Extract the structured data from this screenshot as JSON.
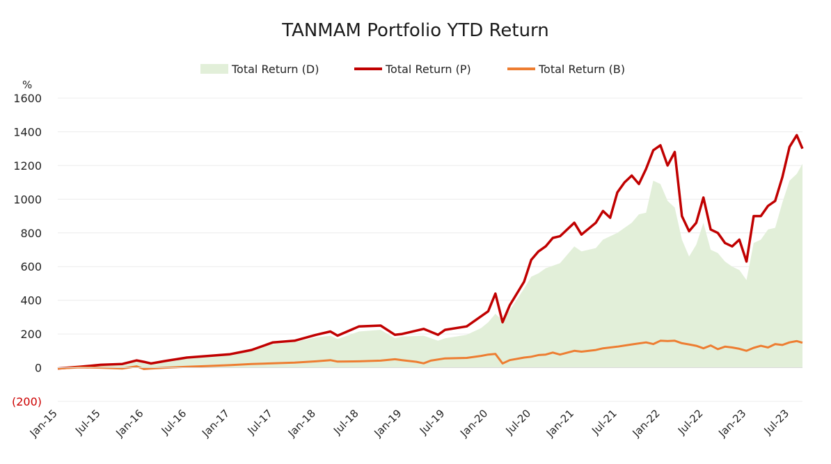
{
  "chart_data": {
    "type": "line",
    "title": "TANMAM Portfolio YTD Return",
    "ylabel": "%",
    "xlabel": "",
    "ylim": [
      -200,
      1600
    ],
    "yticks": [
      -200,
      0,
      200,
      400,
      600,
      800,
      1000,
      1200,
      1400,
      1600
    ],
    "ytick_labels": [
      "(200)",
      "0",
      "200",
      "400",
      "600",
      "800",
      "1000",
      "1200",
      "1400",
      "1600"
    ],
    "negative_label_color": "#cc0000",
    "grid": true,
    "legend_position": "top-center",
    "x_range": [
      0,
      103.8
    ],
    "x_ticks": [
      {
        "t": 0,
        "label": "Jan-15"
      },
      {
        "t": 6,
        "label": "Jul-15"
      },
      {
        "t": 12,
        "label": "Jan-16"
      },
      {
        "t": 18,
        "label": "Jul-16"
      },
      {
        "t": 24,
        "label": "Jan-17"
      },
      {
        "t": 30,
        "label": "Jul-17"
      },
      {
        "t": 36,
        "label": "Jan-18"
      },
      {
        "t": 42,
        "label": "Jul-18"
      },
      {
        "t": 48,
        "label": "Jan-19"
      },
      {
        "t": 54,
        "label": "Jul-19"
      },
      {
        "t": 60,
        "label": "Jan-20"
      },
      {
        "t": 66,
        "label": "Jul-20"
      },
      {
        "t": 72,
        "label": "Jan-21"
      },
      {
        "t": 78,
        "label": "Jul-21"
      },
      {
        "t": 84,
        "label": "Jan-22"
      },
      {
        "t": 90,
        "label": "Jul-22"
      },
      {
        "t": 96,
        "label": "Jan-23"
      },
      {
        "t": 102,
        "label": "Jul-23"
      }
    ],
    "series": [
      {
        "name": "Total Return (D)",
        "kind": "area",
        "color": "#e2efd9",
        "points": [
          [
            0,
            -5
          ],
          [
            3,
            5
          ],
          [
            6,
            15
          ],
          [
            9,
            20
          ],
          [
            11,
            40
          ],
          [
            12,
            30
          ],
          [
            13,
            22
          ],
          [
            15,
            38
          ],
          [
            18,
            55
          ],
          [
            21,
            65
          ],
          [
            24,
            75
          ],
          [
            27,
            100
          ],
          [
            30,
            140
          ],
          [
            33,
            152
          ],
          [
            36,
            180
          ],
          [
            38,
            190
          ],
          [
            39,
            170
          ],
          [
            42,
            215
          ],
          [
            45,
            225
          ],
          [
            47,
            175
          ],
          [
            48,
            185
          ],
          [
            51,
            190
          ],
          [
            53,
            160
          ],
          [
            54,
            175
          ],
          [
            57,
            195
          ],
          [
            59,
            235
          ],
          [
            60,
            270
          ],
          [
            61,
            320
          ],
          [
            62,
            280
          ],
          [
            63,
            340
          ],
          [
            65,
            470
          ],
          [
            66,
            540
          ],
          [
            67,
            560
          ],
          [
            68,
            590
          ],
          [
            70,
            620
          ],
          [
            72,
            720
          ],
          [
            73,
            690
          ],
          [
            75,
            710
          ],
          [
            76,
            760
          ],
          [
            78,
            800
          ],
          [
            80,
            860
          ],
          [
            81,
            910
          ],
          [
            82,
            920
          ],
          [
            83,
            1110
          ],
          [
            84,
            1090
          ],
          [
            85,
            990
          ],
          [
            86,
            950
          ],
          [
            87,
            760
          ],
          [
            88,
            660
          ],
          [
            89,
            730
          ],
          [
            90,
            860
          ],
          [
            91,
            700
          ],
          [
            92,
            680
          ],
          [
            93,
            630
          ],
          [
            94,
            600
          ],
          [
            95,
            580
          ],
          [
            96,
            520
          ],
          [
            97,
            740
          ],
          [
            98,
            760
          ],
          [
            99,
            820
          ],
          [
            100,
            830
          ],
          [
            101,
            980
          ],
          [
            102,
            1110
          ],
          [
            103,
            1150
          ],
          [
            103.8,
            1210
          ]
        ]
      },
      {
        "name": "Total Return (P)",
        "kind": "line",
        "color": "#c00000",
        "points": [
          [
            0,
            -5
          ],
          [
            3,
            5
          ],
          [
            6,
            17
          ],
          [
            9,
            22
          ],
          [
            11,
            43
          ],
          [
            12,
            35
          ],
          [
            13,
            25
          ],
          [
            15,
            40
          ],
          [
            18,
            60
          ],
          [
            21,
            70
          ],
          [
            24,
            80
          ],
          [
            27,
            105
          ],
          [
            30,
            150
          ],
          [
            33,
            160
          ],
          [
            36,
            195
          ],
          [
            38,
            215
          ],
          [
            39,
            190
          ],
          [
            42,
            245
          ],
          [
            45,
            250
          ],
          [
            47,
            195
          ],
          [
            48,
            200
          ],
          [
            51,
            230
          ],
          [
            53,
            195
          ],
          [
            54,
            225
          ],
          [
            57,
            245
          ],
          [
            59,
            305
          ],
          [
            60,
            335
          ],
          [
            61,
            440
          ],
          [
            62,
            270
          ],
          [
            63,
            370
          ],
          [
            65,
            510
          ],
          [
            66,
            640
          ],
          [
            67,
            690
          ],
          [
            68,
            720
          ],
          [
            69,
            770
          ],
          [
            70,
            780
          ],
          [
            72,
            860
          ],
          [
            73,
            790
          ],
          [
            75,
            860
          ],
          [
            76,
            930
          ],
          [
            77,
            890
          ],
          [
            78,
            1040
          ],
          [
            79,
            1100
          ],
          [
            80,
            1140
          ],
          [
            81,
            1090
          ],
          [
            82,
            1180
          ],
          [
            83,
            1290
          ],
          [
            84,
            1320
          ],
          [
            85,
            1200
          ],
          [
            86,
            1280
          ],
          [
            87,
            900
          ],
          [
            88,
            810
          ],
          [
            89,
            860
          ],
          [
            90,
            1010
          ],
          [
            91,
            820
          ],
          [
            92,
            800
          ],
          [
            93,
            740
          ],
          [
            94,
            720
          ],
          [
            95,
            760
          ],
          [
            96,
            630
          ],
          [
            97,
            900
          ],
          [
            98,
            900
          ],
          [
            99,
            960
          ],
          [
            100,
            990
          ],
          [
            101,
            1130
          ],
          [
            102,
            1310
          ],
          [
            103,
            1380
          ],
          [
            103.8,
            1300
          ]
        ]
      },
      {
        "name": "Total Return (B)",
        "kind": "line",
        "color": "#ed7d31",
        "points": [
          [
            0,
            -5
          ],
          [
            3,
            2
          ],
          [
            6,
            0
          ],
          [
            9,
            -5
          ],
          [
            11,
            8
          ],
          [
            12,
            -8
          ],
          [
            13,
            -5
          ],
          [
            15,
            0
          ],
          [
            18,
            5
          ],
          [
            21,
            10
          ],
          [
            24,
            15
          ],
          [
            27,
            22
          ],
          [
            30,
            26
          ],
          [
            33,
            30
          ],
          [
            36,
            38
          ],
          [
            38,
            45
          ],
          [
            39,
            36
          ],
          [
            42,
            38
          ],
          [
            45,
            42
          ],
          [
            47,
            50
          ],
          [
            48,
            45
          ],
          [
            50,
            35
          ],
          [
            51,
            26
          ],
          [
            52,
            42
          ],
          [
            54,
            55
          ],
          [
            57,
            58
          ],
          [
            59,
            70
          ],
          [
            60,
            78
          ],
          [
            61,
            82
          ],
          [
            62,
            25
          ],
          [
            63,
            45
          ],
          [
            65,
            60
          ],
          [
            66,
            65
          ],
          [
            67,
            75
          ],
          [
            68,
            78
          ],
          [
            69,
            90
          ],
          [
            70,
            78
          ],
          [
            72,
            100
          ],
          [
            73,
            95
          ],
          [
            75,
            105
          ],
          [
            76,
            115
          ],
          [
            78,
            125
          ],
          [
            80,
            138
          ],
          [
            82,
            150
          ],
          [
            83,
            140
          ],
          [
            84,
            160
          ],
          [
            85,
            158
          ],
          [
            86,
            160
          ],
          [
            87,
            145
          ],
          [
            88,
            138
          ],
          [
            89,
            130
          ],
          [
            90,
            115
          ],
          [
            91,
            132
          ],
          [
            92,
            110
          ],
          [
            93,
            125
          ],
          [
            94,
            120
          ],
          [
            95,
            112
          ],
          [
            96,
            100
          ],
          [
            97,
            118
          ],
          [
            98,
            130
          ],
          [
            99,
            120
          ],
          [
            100,
            140
          ],
          [
            101,
            135
          ],
          [
            102,
            150
          ],
          [
            103,
            158
          ],
          [
            103.8,
            148
          ]
        ]
      }
    ]
  }
}
